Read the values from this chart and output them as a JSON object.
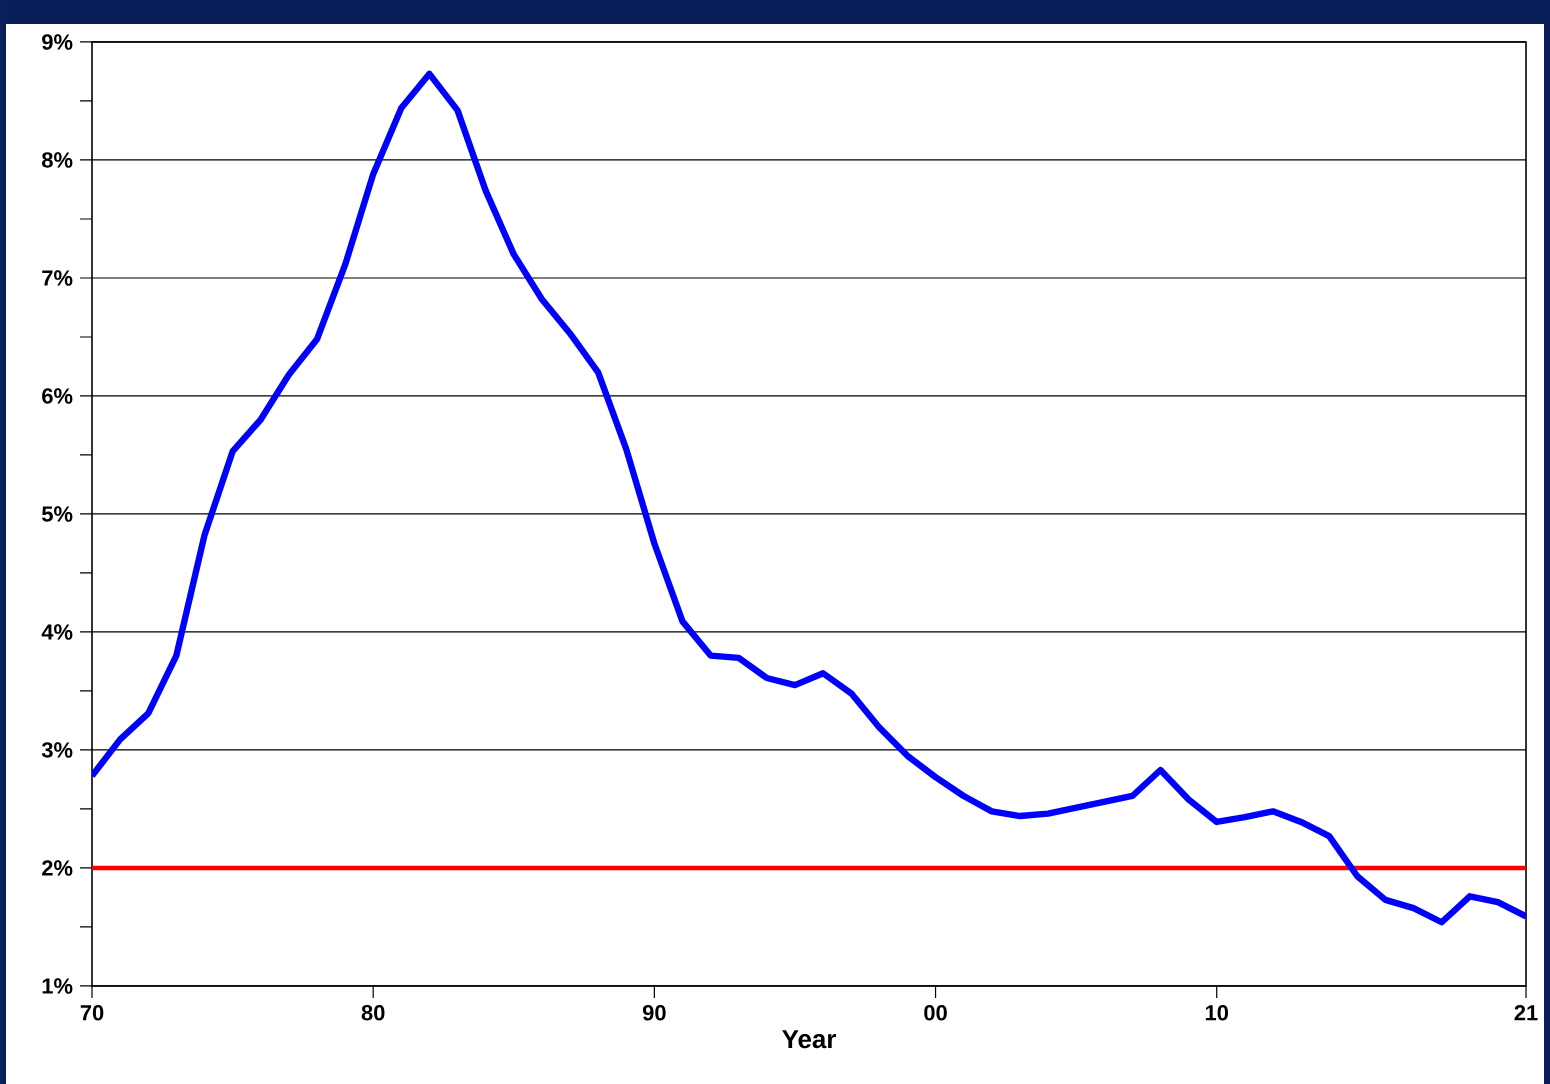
{
  "chart_data": {
    "type": "line",
    "xlabel": "Year",
    "x": [
      1970,
      1971,
      1972,
      1973,
      1974,
      1975,
      1976,
      1977,
      1978,
      1979,
      1980,
      1981,
      1982,
      1983,
      1984,
      1985,
      1986,
      1987,
      1988,
      1989,
      1990,
      1991,
      1992,
      1993,
      1994,
      1995,
      1996,
      1997,
      1998,
      1999,
      2000,
      2001,
      2002,
      2003,
      2004,
      2005,
      2006,
      2007,
      2008,
      2009,
      2010,
      2011,
      2012,
      2013,
      2014,
      2015,
      2016,
      2017,
      2018,
      2019,
      2020,
      2021
    ],
    "series": [
      {
        "color": "#0000ff",
        "values": [
          2.78,
          3.09,
          3.31,
          3.8,
          4.82,
          5.53,
          5.8,
          6.18,
          6.48,
          7.11,
          7.88,
          8.44,
          8.73,
          8.42,
          7.74,
          7.2,
          6.82,
          6.53,
          6.2,
          5.55,
          4.75,
          4.09,
          3.8,
          3.78,
          3.61,
          3.55,
          3.65,
          3.48,
          3.19,
          2.95,
          2.77,
          2.61,
          2.48,
          2.44,
          2.46,
          2.51,
          2.56,
          2.61,
          2.83,
          2.58,
          2.39,
          2.43,
          2.48,
          2.39,
          2.27,
          1.93,
          1.73,
          1.66,
          1.54,
          1.76,
          1.71,
          1.59
        ]
      }
    ],
    "xlim": [
      1970,
      2021
    ],
    "xticks": [
      {
        "value": 1970,
        "label": "70"
      },
      {
        "value": 1980,
        "label": "80"
      },
      {
        "value": 1990,
        "label": "90"
      },
      {
        "value": 2000,
        "label": "00"
      },
      {
        "value": 2010,
        "label": "10"
      },
      {
        "value": 2021,
        "label": "21"
      }
    ],
    "ylim": [
      1,
      9
    ],
    "yticks": [
      {
        "value": 1,
        "label": "1%"
      },
      {
        "value": 1.5,
        "label": null
      },
      {
        "value": 2,
        "label": "2%"
      },
      {
        "value": 2.5,
        "label": null
      },
      {
        "value": 3,
        "label": "3%"
      },
      {
        "value": 3.5,
        "label": null
      },
      {
        "value": 4,
        "label": "4%"
      },
      {
        "value": 4.5,
        "label": null
      },
      {
        "value": 5,
        "label": "5%"
      },
      {
        "value": 5.5,
        "label": null
      },
      {
        "value": 6,
        "label": "6%"
      },
      {
        "value": 6.5,
        "label": null
      },
      {
        "value": 7,
        "label": "7%"
      },
      {
        "value": 7.5,
        "label": null
      },
      {
        "value": 8,
        "label": "8%"
      },
      {
        "value": 8.5,
        "label": null
      },
      {
        "value": 9,
        "label": "9%"
      }
    ],
    "grid": "y",
    "ref_lines": [
      {
        "axis": "y",
        "value": 2,
        "color": "#ff0000"
      }
    ],
    "marker": "none",
    "line_style": "solid"
  }
}
